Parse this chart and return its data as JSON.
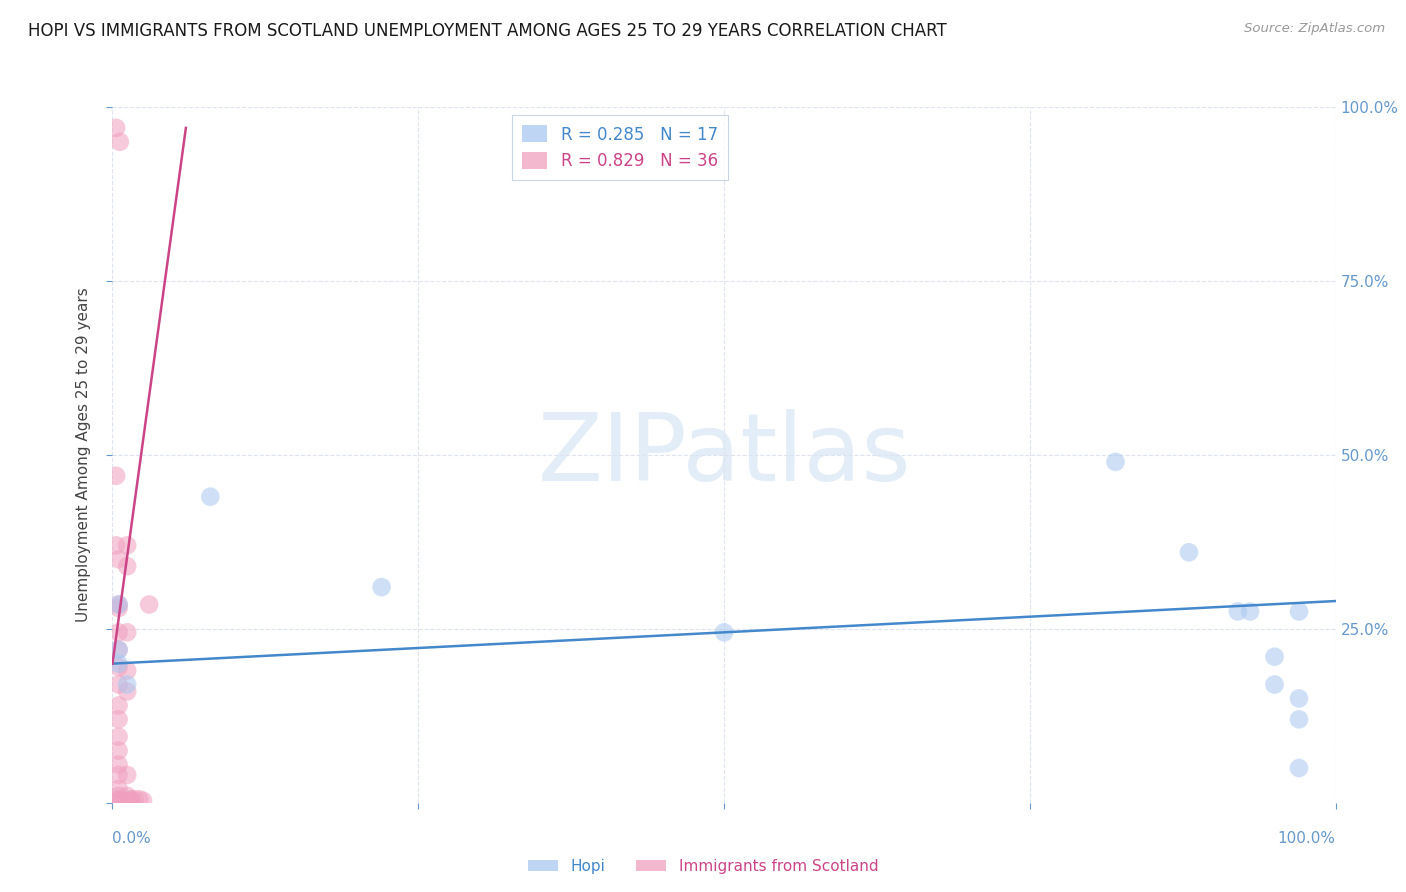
{
  "title": "HOPI VS IMMIGRANTS FROM SCOTLAND UNEMPLOYMENT AMONG AGES 25 TO 29 YEARS CORRELATION CHART",
  "source": "Source: ZipAtlas.com",
  "ylabel": "Unemployment Among Ages 25 to 29 years",
  "watermark_text": "ZIPatlas",
  "legend_line1": "R = 0.285   N = 17",
  "legend_line2": "R = 0.829   N = 36",
  "hopi_color": "#a8c8f0",
  "scotland_color": "#f0a0be",
  "hopi_line_color": "#4488cc",
  "scotland_line_color": "#cc4488",
  "tick_color": "#6699cc",
  "grid_color": "#dde4ef",
  "background_color": "#ffffff",
  "title_fontsize": 12,
  "axis_label_fontsize": 11,
  "tick_fontsize": 11,
  "legend_fontsize": 12,
  "watermark_fontsize": 68,
  "xlim": [
    0.0,
    1.0
  ],
  "ylim": [
    0.0,
    1.0
  ],
  "hopi_points_x": [
    0.005,
    0.005,
    0.08,
    0.22,
    0.5,
    0.82,
    0.88,
    0.92,
    0.93,
    0.95,
    0.95,
    0.97,
    0.97,
    0.97,
    0.97,
    0.005,
    0.012
  ],
  "hopi_points_y": [
    0.285,
    0.22,
    0.44,
    0.31,
    0.245,
    0.49,
    0.36,
    0.275,
    0.275,
    0.21,
    0.17,
    0.15,
    0.12,
    0.05,
    0.275,
    0.2,
    0.17
  ],
  "scotland_points_x": [
    0.003,
    0.006,
    0.003,
    0.003,
    0.005,
    0.005,
    0.005,
    0.005,
    0.005,
    0.005,
    0.005,
    0.005,
    0.005,
    0.005,
    0.005,
    0.005,
    0.005,
    0.005,
    0.005,
    0.005,
    0.005,
    0.005,
    0.012,
    0.012,
    0.012,
    0.012,
    0.012,
    0.012,
    0.012,
    0.015,
    0.015,
    0.015,
    0.018,
    0.022,
    0.025,
    0.03
  ],
  "scotland_points_y": [
    0.97,
    0.95,
    0.47,
    0.37,
    0.35,
    0.285,
    0.28,
    0.245,
    0.22,
    0.195,
    0.17,
    0.14,
    0.12,
    0.095,
    0.075,
    0.055,
    0.04,
    0.02,
    0.01,
    0.005,
    0.003,
    0.001,
    0.37,
    0.34,
    0.245,
    0.19,
    0.16,
    0.04,
    0.01,
    0.005,
    0.003,
    0.001,
    0.005,
    0.005,
    0.003,
    0.285
  ],
  "hopi_trend_x": [
    0.0,
    1.0
  ],
  "hopi_trend_y": [
    0.2,
    0.29
  ],
  "scotland_trend_x": [
    0.0,
    0.06
  ],
  "scotland_trend_y": [
    0.2,
    0.97
  ]
}
